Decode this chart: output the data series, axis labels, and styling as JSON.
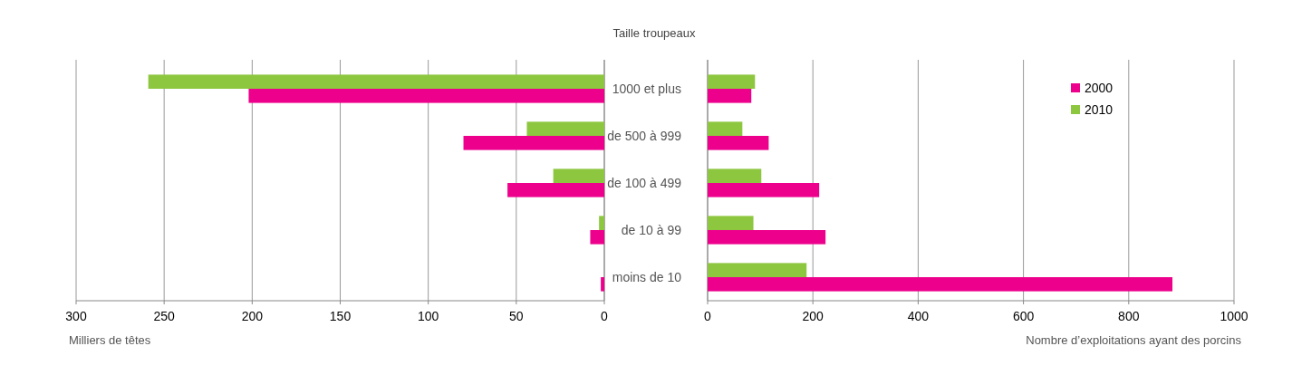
{
  "chart_data": [
    {
      "type": "bar",
      "orientation": "horizontal",
      "title": "Taille troupeaux",
      "xlabel": "Milliers de têtes",
      "categories": [
        "1000 et plus",
        "de 500 à 999",
        "de 100 à 499",
        "de 10 à 99",
        "moins de 10"
      ],
      "series": [
        {
          "color": "#ec008c",
          "values": [
            202,
            80,
            55,
            8,
            2
          ]
        },
        {
          "color": "#8dc63f",
          "values": [
            259,
            44,
            29,
            3,
            0
          ]
        }
      ],
      "xlim": [
        300,
        0
      ],
      "xticks": [
        300,
        250,
        200,
        150,
        100,
        50,
        0
      ],
      "grid": "x",
      "tick_labels": "x",
      "legend": false
    },
    {
      "type": "bar",
      "orientation": "horizontal",
      "xlabel": "Nombre d’exploitations ayant des porcins",
      "categories": [
        "1000 et plus",
        "de 500 à 999",
        "de 100 à 499",
        "de 10 à 99",
        "moins de 10"
      ],
      "series": [
        {
          "name": "2000",
          "color": "#ec008c",
          "values": [
            83,
            116,
            212,
            224,
            883
          ]
        },
        {
          "name": "2010",
          "color": "#8dc63f",
          "values": [
            90,
            66,
            102,
            87,
            188
          ]
        }
      ],
      "xlim": [
        0,
        1000
      ],
      "xticks": [
        0,
        200,
        400,
        600,
        800,
        1000
      ],
      "grid": "x",
      "legend": "top right"
    }
  ]
}
